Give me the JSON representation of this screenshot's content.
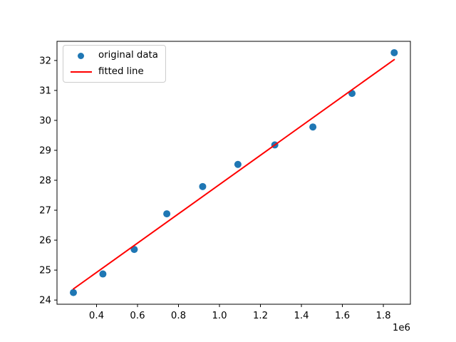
{
  "chart_data": {
    "type": "scatter",
    "title": "",
    "xlabel": "",
    "ylabel": "",
    "x_offset_label": "1e6",
    "xlim": [
      207000,
      1932000
    ],
    "ylim": [
      23.86,
      32.64
    ],
    "x_tick_values": [
      400000,
      600000,
      800000,
      1000000,
      1200000,
      1400000,
      1600000,
      1800000
    ],
    "x_tick_labels": [
      "0.4",
      "0.6",
      "0.8",
      "1.0",
      "1.2",
      "1.4",
      "1.6",
      "1.8"
    ],
    "y_tick_values": [
      24,
      25,
      26,
      27,
      28,
      29,
      30,
      31,
      32
    ],
    "y_tick_labels": [
      "24",
      "25",
      "26",
      "27",
      "28",
      "29",
      "30",
      "31",
      "32"
    ],
    "grid": false,
    "legend_position": "upper left",
    "colors": {
      "scatter": "#1f77b4",
      "line": "#ff0000",
      "axes": "#000000",
      "legend_border": "#cccccc"
    },
    "series": [
      {
        "name": "original data",
        "type": "scatter",
        "x": [
          287000,
          431000,
          584000,
          743000,
          918000,
          1090000,
          1270000,
          1456000,
          1647000,
          1853000
        ],
        "y": [
          24.25,
          24.87,
          25.69,
          26.88,
          27.79,
          28.53,
          29.18,
          29.78,
          30.9,
          32.26
        ]
      },
      {
        "name": "fitted line",
        "type": "line",
        "x": [
          287000,
          1853000
        ],
        "y": [
          24.37,
          32.03
        ],
        "slope": 4.89e-06,
        "intercept": 22.97
      }
    ]
  }
}
